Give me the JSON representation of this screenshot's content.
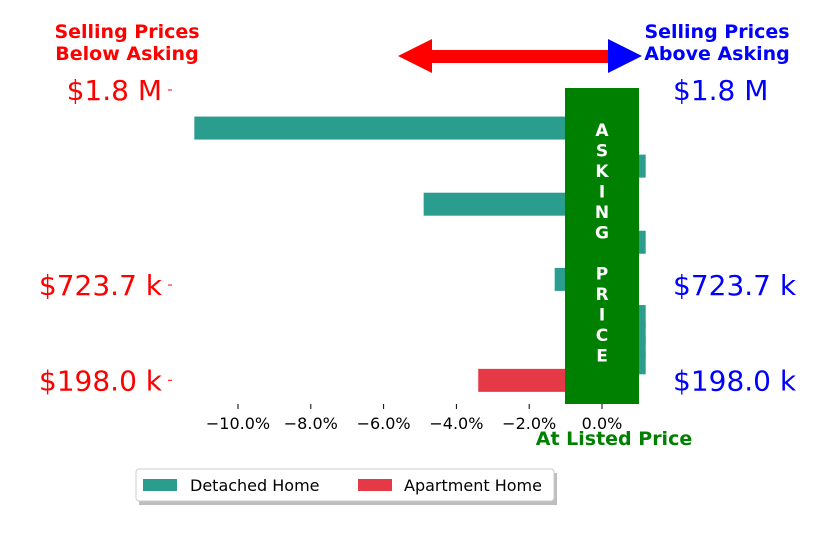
{
  "chart_data": {
    "type": "bar",
    "orientation": "horizontal",
    "xlim": [
      -11.5,
      1.0
    ],
    "ylim": [
      200000,
      1800000
    ],
    "x_ticks": [
      {
        "value": -10,
        "label": "−10.0%"
      },
      {
        "value": -8,
        "label": "−8.0%"
      },
      {
        "value": -6,
        "label": "−6.0%"
      },
      {
        "value": -4,
        "label": "−4.0%"
      },
      {
        "value": -2,
        "label": "−2.0%"
      },
      {
        "value": 0,
        "label": "0.0%"
      }
    ],
    "y_ticks_left": [
      {
        "value": 1800000,
        "label": "$1.8 M"
      },
      {
        "value": 723700,
        "label": "$723.7 k"
      },
      {
        "value": 198000,
        "label": "$198.0 k"
      }
    ],
    "y_ticks_right": [
      {
        "value": 1800000,
        "label": "$1.8 M"
      },
      {
        "value": 723700,
        "label": "$723.7 k"
      },
      {
        "value": 198000,
        "label": "$198.0 k"
      }
    ],
    "series": [
      {
        "name": "Detached Home",
        "color": "#2a9d8f",
        "points": [
          {
            "price": 1590000,
            "pct_diff": -11.2
          },
          {
            "price": 1380000,
            "pct_diff": 1.2
          },
          {
            "price": 1170000,
            "pct_diff": -4.9
          },
          {
            "price": 960000,
            "pct_diff": 1.2
          },
          {
            "price": 755000,
            "pct_diff": -1.3
          },
          {
            "price": 550000,
            "pct_diff": 1.2
          },
          {
            "price": 460000,
            "pct_diff": 1.2
          },
          {
            "price": 380000,
            "pct_diff": 1.2
          },
          {
            "price": 295000,
            "pct_diff": 1.2
          }
        ]
      },
      {
        "name": "Apartment Home",
        "color": "#e63946",
        "points": [
          {
            "price": 198000,
            "pct_diff": -3.4
          }
        ]
      }
    ],
    "annotations": {
      "below_asking": "Selling Prices\nBelow Asking",
      "above_asking": "Selling Prices\nAbove Asking",
      "at_listed": "At Listed Price",
      "asking_price_band": "ASKING PRICE"
    },
    "colors": {
      "below": "#ff0000",
      "above": "#0000ff",
      "band": "#008000",
      "arrow_left": "#ff0000",
      "arrow_right": "#0000ff"
    },
    "legend": {
      "position": "bottom-left",
      "entries": [
        "Detached Home",
        "Apartment Home"
      ]
    }
  }
}
